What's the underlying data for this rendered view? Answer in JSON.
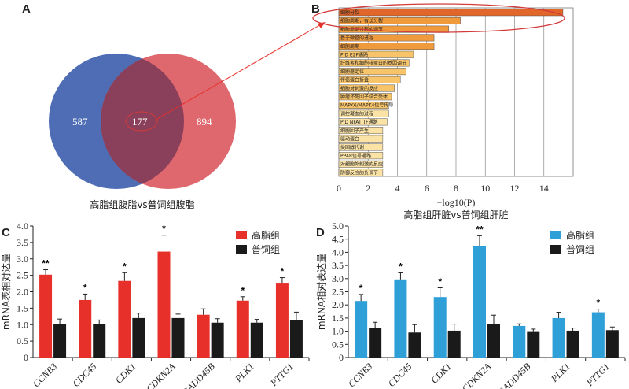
{
  "panels": {
    "A": "A",
    "B": "B",
    "C": "C",
    "D": "D"
  },
  "venn": {
    "left_count": "587",
    "overlap_count": "177",
    "right_count": "894",
    "caption": "高脂组腹脂vs普饲组腹脂",
    "colors": {
      "left": "#4e6db5",
      "right": "#dc5b63",
      "overlap": "#8a3f5a"
    }
  },
  "chart_data": [
    {
      "id": "B",
      "type": "bar",
      "orientation": "horizontal",
      "categories": [
        "细胞分裂",
        "细胞周期，有丝分裂",
        "细胞周期过程的调节",
        "基于微管的进程",
        "细胞周期",
        "PID E2F通路",
        "纤维素和细胞核蛋白的基因调节",
        "细胞器定位",
        "伴侣蛋白折叠",
        "细胞对刺激的反应",
        "肿瘤坏死因子结合受体",
        "MAPK6/MAPK4信号传导",
        "调控凝血的过程",
        "PID NFAT TF通路",
        "细胞因子产生",
        "驱动蛋白",
        "类固醇代谢",
        "PPAR信号通路",
        "对细胞外刺激的反应",
        "防御反应的负调节"
      ],
      "values": [
        15.3,
        8.3,
        7.5,
        6.5,
        6.5,
        5.1,
        4.8,
        4.6,
        4.2,
        3.8,
        3.6,
        3.4,
        3.4,
        3.3,
        3.0,
        3.0,
        3.0,
        3.0,
        3.0,
        3.0
      ],
      "xlabel": "−log10(P)",
      "xlim": [
        0,
        16
      ],
      "xticks": [
        0,
        2,
        4,
        6,
        8,
        10,
        12,
        14
      ],
      "caption": "高脂组肝脏vs普饲组肝脏",
      "colors": {
        "top": "#e0662a",
        "high": "#ef9a3d",
        "mid": "#f7c46a",
        "low": "#fbe3a6"
      }
    },
    {
      "id": "C",
      "type": "bar",
      "ylabel": "mRNA表相对达量",
      "ylim": [
        0,
        4.0
      ],
      "yticks": [
        "0",
        "0.5",
        "1.0",
        "1.5",
        "2.0",
        "2.5",
        "3.0",
        "3.5",
        "4.0"
      ],
      "categories": [
        "CCNB3",
        "CDC45",
        "CDK1",
        "CDKN2A",
        "GADD45B",
        "PLK1",
        "PTTG1"
      ],
      "series": [
        {
          "name": "高脂组",
          "color": "#e8302a",
          "values": [
            2.52,
            1.75,
            2.33,
            3.22,
            1.3,
            1.73,
            2.25
          ],
          "errors": [
            0.15,
            0.18,
            0.25,
            0.5,
            0.18,
            0.12,
            0.18
          ]
        },
        {
          "name": "普饲组",
          "color": "#1a1a1a",
          "values": [
            1.02,
            1.02,
            1.2,
            1.2,
            1.06,
            1.06,
            1.13
          ],
          "errors": [
            0.15,
            0.12,
            0.15,
            0.12,
            0.12,
            0.1,
            0.25
          ]
        }
      ],
      "significance": [
        "**",
        "*",
        "*",
        "*",
        "",
        "*",
        "*"
      ]
    },
    {
      "id": "D",
      "type": "bar",
      "ylabel": "mRNA相对表达量",
      "ylim": [
        0,
        5.0
      ],
      "yticks": [
        "0",
        "0.5",
        "1.0",
        "1.5",
        "2.0",
        "2.5",
        "3.0",
        "3.5",
        "4.0",
        "4.5",
        "5.0"
      ],
      "categories": [
        "CCNB3",
        "CDC45",
        "CDK1",
        "CDKN2A",
        "GADD45B",
        "PLK1",
        "PTTG1"
      ],
      "series": [
        {
          "name": "高脂组",
          "color": "#2f9fd8",
          "values": [
            2.15,
            2.97,
            2.3,
            4.23,
            1.2,
            1.5,
            1.72
          ],
          "errors": [
            0.25,
            0.25,
            0.35,
            0.4,
            0.08,
            0.22,
            0.12
          ]
        },
        {
          "name": "普饲组",
          "color": "#1a1a1a",
          "values": [
            1.12,
            0.95,
            1.02,
            1.26,
            1.0,
            1.02,
            1.04
          ],
          "errors": [
            0.22,
            0.3,
            0.25,
            0.35,
            0.08,
            0.1,
            0.12
          ]
        }
      ],
      "significance": [
        "*",
        "*",
        "*",
        "**",
        "",
        "",
        "*"
      ]
    }
  ]
}
